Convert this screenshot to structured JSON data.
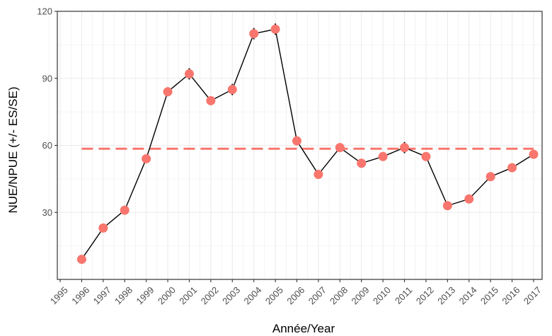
{
  "chart_data": {
    "type": "line",
    "xlabel": "Année/Year",
    "ylabel": "NUE/NPUE (+/- ES/SE)",
    "xlim": [
      1995,
      2017
    ],
    "ylim": [
      0,
      120
    ],
    "x_ticks": [
      "1995",
      "1996",
      "1997",
      "1998",
      "1999",
      "2000",
      "2001",
      "2002",
      "2003",
      "2004",
      "2005",
      "2006",
      "2007",
      "2008",
      "2009",
      "2010",
      "2011",
      "2012",
      "2013",
      "2014",
      "2015",
      "2016",
      "2017"
    ],
    "y_ticks": [
      "30",
      "60",
      "90",
      "120"
    ],
    "grid": true,
    "x": [
      1996,
      1997,
      1998,
      1999,
      2000,
      2001,
      2002,
      2003,
      2004,
      2005,
      2006,
      2007,
      2008,
      2009,
      2010,
      2011,
      2012,
      2013,
      2014,
      2015,
      2016,
      2017
    ],
    "values": [
      9,
      23,
      31,
      54,
      84,
      92,
      80,
      85,
      110,
      112,
      62,
      47,
      59,
      52,
      55,
      59,
      55,
      33,
      36,
      46,
      50,
      56
    ],
    "errors": [
      0.5,
      1,
      1,
      1.5,
      2,
      2.5,
      2,
      2.5,
      2.5,
      2.5,
      1.5,
      1,
      1.5,
      2,
      1.5,
      2.5,
      1.5,
      1,
      1,
      1.5,
      1.8,
      1.8
    ],
    "reference_line": {
      "value": 58.5,
      "style": "dashed",
      "from": 1996,
      "to": 2017
    },
    "colors": {
      "point": "#f8766d",
      "line": "#000000",
      "reference": "#f8766d",
      "grid": "#ebebeb",
      "panel_border": "#333333"
    }
  }
}
